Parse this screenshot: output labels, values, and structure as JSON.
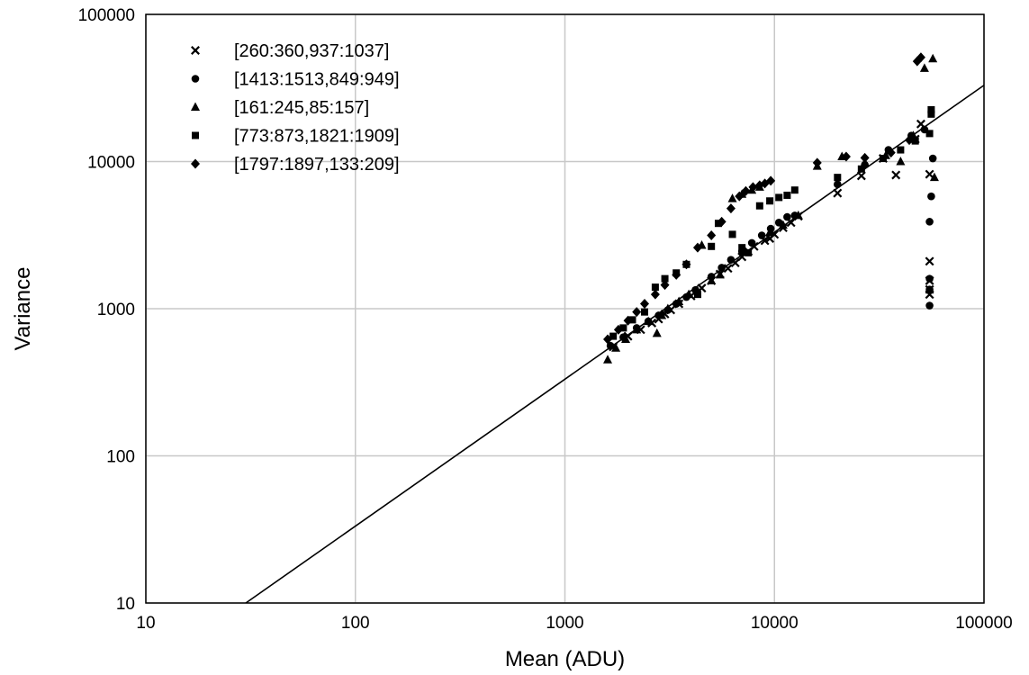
{
  "chart_data": {
    "type": "scatter",
    "title": "",
    "xlabel": "Mean (ADU)",
    "ylabel": "Variance",
    "xscale": "log",
    "yscale": "log",
    "xlim": [
      10,
      100000
    ],
    "ylim": [
      10,
      100000
    ],
    "grid": true,
    "legend_position": "top-left",
    "x_ticks": [
      "10",
      "100",
      "1000",
      "10000",
      "100000"
    ],
    "y_ticks": [
      "10",
      "100",
      "1000",
      "10000",
      "100000"
    ],
    "fit_line": {
      "x": [
        30,
        100000
      ],
      "y": [
        10,
        33000
      ]
    },
    "series": [
      {
        "name": "[260:360,937:1037]",
        "marker": "x",
        "x": [
          1700,
          2000,
          2300,
          2600,
          2800,
          3000,
          3200,
          3500,
          4000,
          4500,
          5000,
          5500,
          6000,
          6500,
          7000,
          7500,
          8000,
          9000,
          9500,
          10000,
          11000,
          12000,
          13000,
          20000,
          26000,
          33000,
          38000,
          47000,
          50000,
          55000,
          55000,
          55000,
          55000,
          55000
        ],
        "y": [
          550,
          650,
          720,
          800,
          850,
          920,
          980,
          1080,
          1220,
          1380,
          1550,
          1720,
          1880,
          2050,
          2250,
          2450,
          2650,
          2900,
          3000,
          3200,
          3550,
          3850,
          4250,
          6100,
          8000,
          10500,
          8100,
          14200,
          18000,
          8200,
          2100,
          1550,
          1350,
          1250
        ]
      },
      {
        "name": "[1413:1513,849:949]",
        "marker": "circle",
        "x": [
          1650,
          1900,
          2200,
          2500,
          2800,
          3100,
          3400,
          3800,
          4200,
          5000,
          5600,
          6200,
          7000,
          7800,
          8700,
          9600,
          10500,
          11500,
          12500,
          20000,
          27000,
          35000,
          45000,
          52000,
          55000,
          55000,
          55000,
          55000,
          56000,
          57000
        ],
        "y": [
          560,
          640,
          740,
          820,
          900,
          980,
          1080,
          1200,
          1340,
          1650,
          1900,
          2150,
          2450,
          2800,
          3150,
          3500,
          3850,
          4200,
          4300,
          7000,
          9500,
          12000,
          15000,
          16500,
          3900,
          1600,
          1350,
          1050,
          5800,
          10500
        ]
      },
      {
        "name": "[161:245,85:157]",
        "marker": "triangle",
        "x": [
          1600,
          1750,
          1950,
          2200,
          2500,
          2750,
          2900,
          3100,
          3500,
          3900,
          4500,
          5000,
          5500,
          6300,
          7000,
          7800,
          8500,
          9500,
          11000,
          13000,
          16000,
          21000,
          27000,
          34000,
          40000,
          46000,
          52000,
          57000,
          58000
        ],
        "y": [
          450,
          540,
          620,
          720,
          820,
          680,
          900,
          1000,
          1120,
          1250,
          2700,
          1550,
          1700,
          5600,
          6000,
          6400,
          6700,
          3300,
          3700,
          4300,
          9300,
          10800,
          9800,
          11000,
          10000,
          15000,
          43000,
          50000,
          7800
        ]
      },
      {
        "name": "[773:873,1821:1909]",
        "marker": "square",
        "x": [
          1700,
          1900,
          2100,
          2400,
          2700,
          3000,
          3400,
          3800,
          4300,
          5000,
          5400,
          6300,
          7000,
          7500,
          8500,
          9500,
          10500,
          11500,
          12500,
          20000,
          26000,
          33000,
          40000,
          47000,
          55000,
          56000,
          56000
        ],
        "y": [
          650,
          740,
          840,
          950,
          1400,
          1600,
          1750,
          2000,
          1250,
          2650,
          3800,
          3200,
          2600,
          2400,
          5000,
          5400,
          5700,
          5900,
          6400,
          7800,
          8900,
          10500,
          12000,
          13800,
          15500,
          21000,
          22500
        ]
      },
      {
        "name": "[1797:1897,133:209]",
        "marker": "diamond",
        "x": [
          1600,
          1800,
          2000,
          2200,
          2400,
          2700,
          3000,
          3400,
          3800,
          4300,
          5000,
          5600,
          6200,
          6800,
          7300,
          7900,
          8500,
          9000,
          9600,
          16000,
          22000,
          27000,
          36000,
          44000,
          48000,
          50000
        ],
        "y": [
          620,
          720,
          830,
          950,
          1080,
          1250,
          1450,
          1700,
          2000,
          2600,
          3150,
          3900,
          4800,
          5800,
          6300,
          6700,
          6900,
          7100,
          7400,
          9800,
          10800,
          10600,
          11500,
          14000,
          48000,
          51000
        ]
      }
    ]
  }
}
